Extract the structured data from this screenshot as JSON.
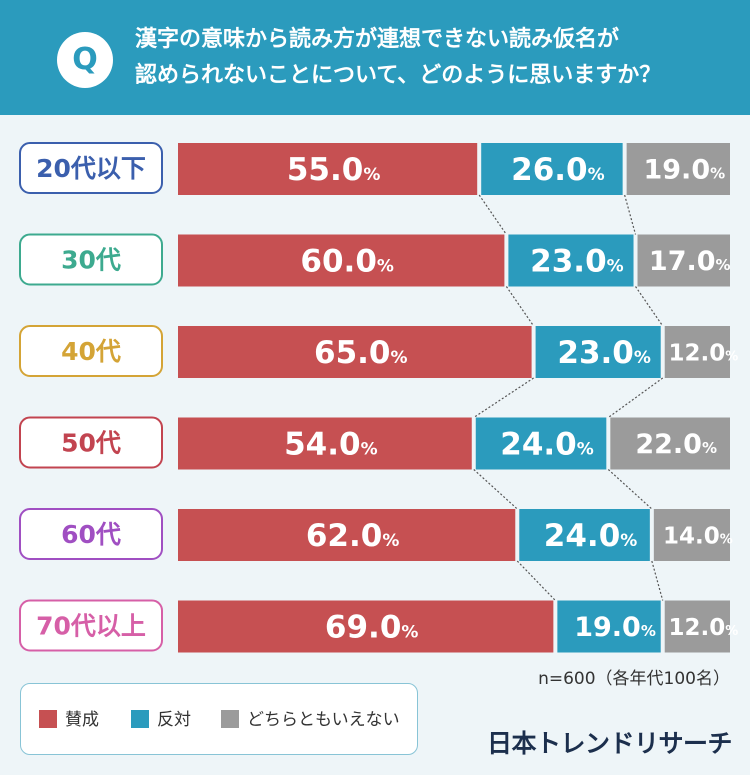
{
  "header": {
    "q_label": "Q",
    "question_line1": "漢字の意味から読み方が連想できない読み仮名が",
    "question_line2": "認められないことについて、どのように思いますか？"
  },
  "colors": {
    "header_bg": "#2b9bbd",
    "agree": "#c65052",
    "disagree": "#2b9bbd",
    "neutral": "#9b9b9b"
  },
  "chart_data": {
    "type": "bar",
    "orientation": "horizontal",
    "stacked": true,
    "normalized_to": 100,
    "categories": [
      "20代以下",
      "30代",
      "40代",
      "50代",
      "60代",
      "70代以上"
    ],
    "category_colors": [
      "#3b5fad",
      "#3daa8f",
      "#d4a436",
      "#c24450",
      "#a04fc2",
      "#d65fa7"
    ],
    "series": [
      {
        "name": "賛成",
        "color": "#c65052",
        "values": [
          55.0,
          60.0,
          65.0,
          54.0,
          62.0,
          69.0
        ]
      },
      {
        "name": "反対",
        "color": "#2b9bbd",
        "values": [
          26.0,
          23.0,
          23.0,
          24.0,
          24.0,
          19.0
        ]
      },
      {
        "name": "どちらともいえない",
        "color": "#9b9b9b",
        "values": [
          19.0,
          17.0,
          12.0,
          22.0,
          14.0,
          12.0
        ]
      }
    ],
    "value_unit": "%",
    "connector_lines": true
  },
  "legend": [
    {
      "label": "賛成",
      "color": "#c65052"
    },
    {
      "label": "反対",
      "color": "#2b9bbd"
    },
    {
      "label": "どちらともいえない",
      "color": "#9b9b9b"
    }
  ],
  "note": "n=600（各年代100名）",
  "logo": "日本トレンドリサーチ"
}
